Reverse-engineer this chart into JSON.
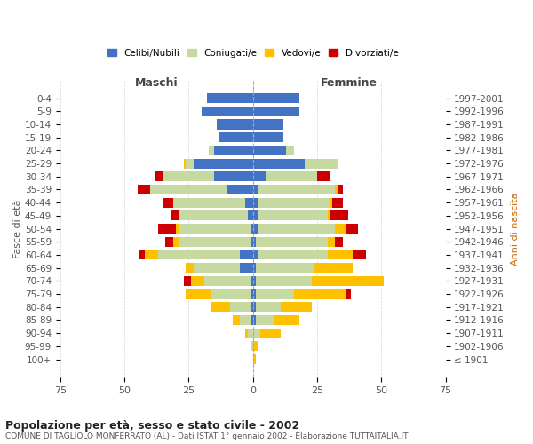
{
  "age_groups": [
    "100+",
    "95-99",
    "90-94",
    "85-89",
    "80-84",
    "75-79",
    "70-74",
    "65-69",
    "60-64",
    "55-59",
    "50-54",
    "45-49",
    "40-44",
    "35-39",
    "30-34",
    "25-29",
    "20-24",
    "15-19",
    "10-14",
    "5-9",
    "0-4"
  ],
  "birth_years": [
    "≤ 1901",
    "1902-1906",
    "1907-1911",
    "1912-1916",
    "1917-1921",
    "1922-1926",
    "1927-1931",
    "1932-1936",
    "1937-1941",
    "1942-1946",
    "1947-1951",
    "1952-1956",
    "1957-1961",
    "1962-1966",
    "1967-1971",
    "1972-1976",
    "1977-1981",
    "1982-1986",
    "1987-1991",
    "1992-1996",
    "1997-2001"
  ],
  "maschi_celibi": [
    0,
    0,
    0,
    1,
    1,
    1,
    1,
    5,
    5,
    1,
    1,
    2,
    3,
    10,
    15,
    23,
    15,
    13,
    14,
    20,
    18
  ],
  "maschi_coniugati": [
    0,
    1,
    2,
    4,
    8,
    15,
    18,
    18,
    32,
    28,
    28,
    27,
    28,
    30,
    20,
    3,
    2,
    0,
    0,
    0,
    0
  ],
  "maschi_vedovi": [
    0,
    0,
    1,
    3,
    7,
    10,
    5,
    3,
    5,
    2,
    1,
    0,
    0,
    0,
    0,
    1,
    0,
    0,
    0,
    0,
    0
  ],
  "maschi_divorziati": [
    0,
    0,
    0,
    0,
    0,
    0,
    3,
    0,
    2,
    3,
    7,
    3,
    4,
    5,
    3,
    0,
    0,
    0,
    0,
    0,
    0
  ],
  "femmine_celibi": [
    0,
    0,
    0,
    1,
    1,
    1,
    1,
    1,
    2,
    1,
    2,
    2,
    2,
    2,
    5,
    20,
    13,
    12,
    12,
    18,
    18
  ],
  "femmine_coniugati": [
    0,
    0,
    3,
    7,
    10,
    15,
    22,
    23,
    27,
    28,
    30,
    27,
    28,
    30,
    20,
    13,
    3,
    0,
    0,
    0,
    0
  ],
  "femmine_vedovi": [
    1,
    2,
    8,
    10,
    12,
    20,
    28,
    15,
    10,
    3,
    4,
    1,
    1,
    1,
    0,
    0,
    0,
    0,
    0,
    0,
    0
  ],
  "femmine_divorziati": [
    0,
    0,
    0,
    0,
    0,
    2,
    0,
    0,
    5,
    3,
    5,
    7,
    4,
    2,
    5,
    0,
    0,
    0,
    0,
    0,
    0
  ],
  "color_celibi": "#4472c4",
  "color_coniugati": "#c6d9a0",
  "color_vedovi": "#ffc000",
  "color_divorziati": "#cc0000",
  "title": "Popolazione per età, sesso e stato civile - 2002",
  "subtitle": "COMUNE DI TAGLIOLO MONFERRATO (AL) - Dati ISTAT 1° gennaio 2002 - Elaborazione TUTTAITALIA.IT",
  "ylabel_left": "Fasce di età",
  "ylabel_right": "Anni di nascita",
  "xlabel_left": "Maschi",
  "xlabel_right": "Femmine",
  "xlim": 75,
  "background_color": "#ffffff",
  "grid_color": "#cccccc",
  "legend_labels": [
    "Celibi/Nubili",
    "Coniugati/e",
    "Vedovi/e",
    "Divorziati/e"
  ]
}
